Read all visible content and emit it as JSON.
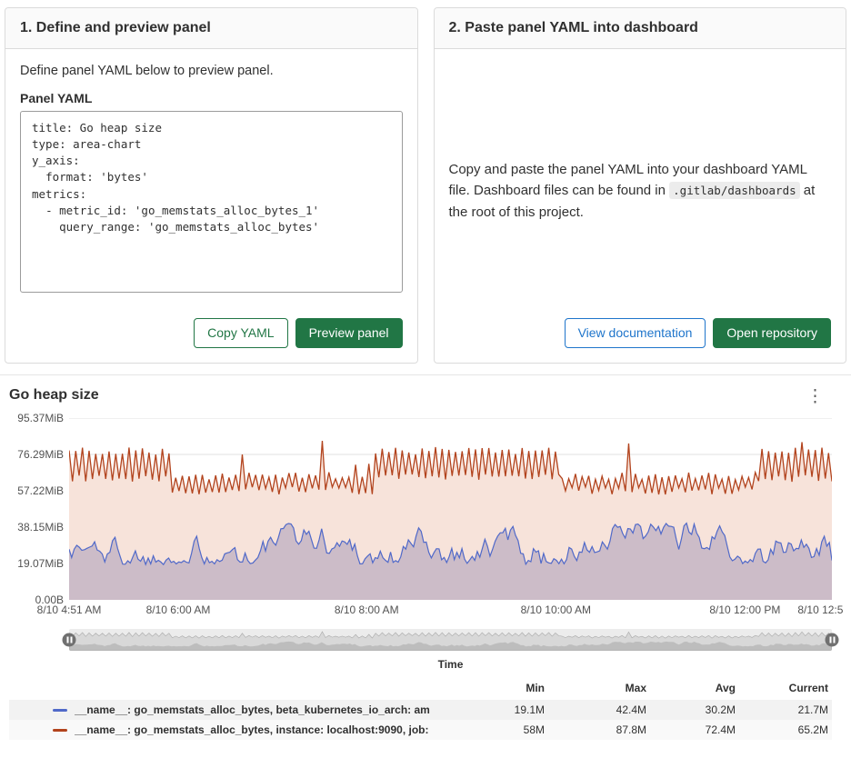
{
  "cards": {
    "define": {
      "title": "1. Define and preview panel",
      "description": "Define panel YAML below to preview panel.",
      "yaml_label": "Panel YAML",
      "yaml_value": "title: Go heap size\ntype: area-chart\ny_axis:\n  format: 'bytes'\nmetrics:\n  - metric_id: 'go_memstats_alloc_bytes_1'\n    query_range: 'go_memstats_alloc_bytes'",
      "copy_button": "Copy YAML",
      "preview_button": "Preview panel"
    },
    "paste": {
      "title": "2. Paste panel YAML into dashboard",
      "text_before_code": "Copy and paste the panel YAML into your dashboard YAML file. Dashboard files can be found in ",
      "code_path": ".gitlab/dashboards",
      "text_after_code": " at the root of this project.",
      "docs_button": "View documentation",
      "repo_button": "Open repository"
    }
  },
  "panel": {
    "title": "Go heap size",
    "menu_icon": "⋮",
    "time_axis_label": "Time"
  },
  "chart_data": {
    "type": "area",
    "title": "Go heap size",
    "y_max": 95.37,
    "y_unit": "MiB",
    "grid": true,
    "legend_position": "bottom-table",
    "y_ticks": [
      {
        "label": "95.37MiB",
        "value": 95.37
      },
      {
        "label": "76.29MiB",
        "value": 76.29
      },
      {
        "label": "57.22MiB",
        "value": 57.22
      },
      {
        "label": "38.15MiB",
        "value": 38.15
      },
      {
        "label": "19.07MiB",
        "value": 19.07
      },
      {
        "label": "0.00B",
        "value": 0
      }
    ],
    "x_ticks": [
      {
        "label": "8/10 4:51 AM",
        "pos": 0.0
      },
      {
        "label": "8/10 6:00 AM",
        "pos": 0.143
      },
      {
        "label": "8/10 8:00 AM",
        "pos": 0.39
      },
      {
        "label": "8/10 10:00 AM",
        "pos": 0.638
      },
      {
        "label": "8/10 12:00 PM",
        "pos": 0.886
      },
      {
        "label": "8/10 12:5",
        "pos": 0.985
      }
    ],
    "seed": 1337,
    "series": [
      {
        "id": "go_memstats_alloc_bytes_instance_prometheus",
        "kind": "random-walk",
        "color": "#5069c9",
        "fill": "rgba(105,98,160,0.30)",
        "points": 300,
        "walk": {
          "start": 31,
          "step": 7,
          "min": 18.4,
          "max": 40.3,
          "final": 20.7
        },
        "legend_label": "__name__: go_memstats_alloc_bytes, beta_kubernetes_io_arch: am",
        "stats": {
          "min": "19.1M",
          "max": "42.4M",
          "avg": "30.2M",
          "current": "21.7M"
        }
      },
      {
        "id": "go_memstats_alloc_bytes_instance_localhost_9090",
        "kind": "sawtooth",
        "color": "#b2431d",
        "fill": "#f7e3da",
        "points": 230,
        "segments": [
          {
            "from": 0.0,
            "to": 0.135,
            "low": 62.0,
            "high": 80.0
          },
          {
            "from": 0.135,
            "to": 0.4,
            "low": 55.3,
            "high": 67.0
          },
          {
            "from": 0.4,
            "to": 0.643,
            "low": 62.0,
            "high": 80.0
          },
          {
            "from": 0.643,
            "to": 0.9,
            "low": 55.3,
            "high": 67.0
          },
          {
            "from": 0.9,
            "to": 1.0,
            "low": 62.0,
            "high": 80.0
          }
        ],
        "spike_max": 83.7,
        "final": 62.2,
        "legend_label": "__name__: go_memstats_alloc_bytes, instance: localhost:9090, job:",
        "stats": {
          "min": "58M",
          "max": "87.8M",
          "avg": "72.4M",
          "current": "65.2M"
        }
      }
    ],
    "legend": {
      "columns": [
        "Min",
        "Max",
        "Avg",
        "Current"
      ]
    }
  }
}
